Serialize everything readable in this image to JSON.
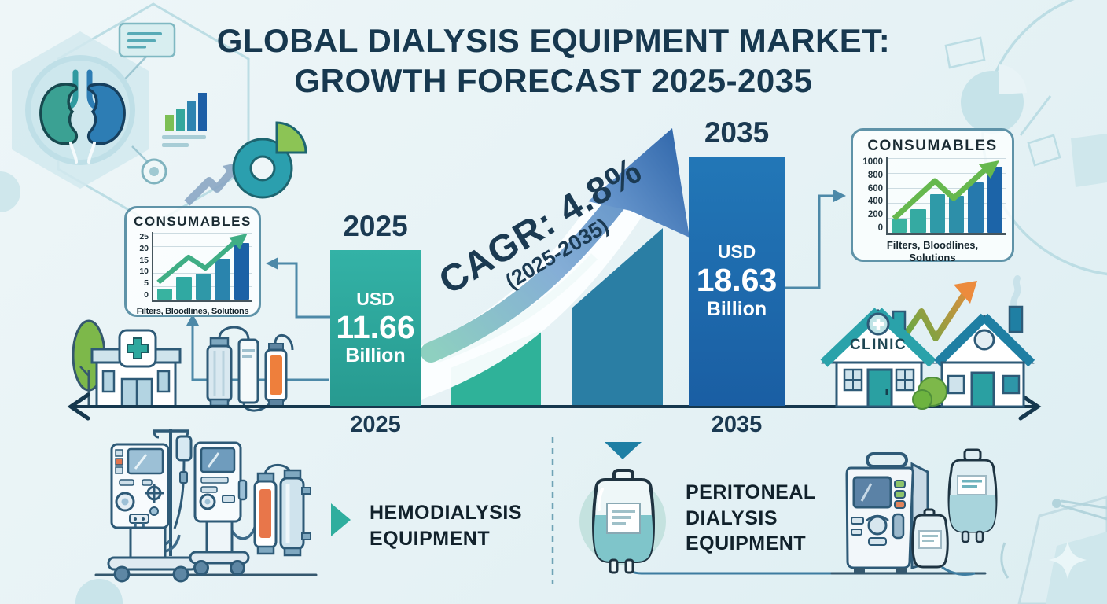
{
  "title": {
    "line1": "GLOBAL DIALYSIS EQUIPMENT MARKET:",
    "line2": "GROWTH FORECAST 2025-2035"
  },
  "chart_data": [
    {
      "type": "bar",
      "title": "Global dialysis equipment market growth forecast",
      "categories": [
        "2025",
        "2035"
      ],
      "values": [
        11.66,
        18.63
      ],
      "unit": "USD Billion",
      "annotations": [
        "CAGR: 4.8% (2025-2035)"
      ],
      "bar_colors": [
        "#2AA79C",
        "#1E6CAC"
      ],
      "legend_position": "none",
      "grid": false
    },
    {
      "type": "bar",
      "title": "CONSUMABLES (left card)",
      "values": [
        4,
        8.5,
        9.5,
        15,
        21
      ],
      "ylim": [
        0,
        25
      ],
      "yticks": [
        25,
        20,
        15,
        10,
        5,
        0
      ],
      "xlabel": "Filters, Bloodlines, Solutions",
      "bar_colors": [
        "#38b3a0",
        "#30a9a2",
        "#2f98a8",
        "#2a84ad",
        "#1c61a6"
      ],
      "trend_arrow": true,
      "grid": true
    },
    {
      "type": "bar",
      "title": "CONSUMABLES (right card)",
      "values": [
        190,
        310,
        510,
        490,
        670,
        870
      ],
      "ylim": [
        0,
        1000
      ],
      "yticks": [
        1000,
        800,
        600,
        400,
        200,
        0
      ],
      "xlabel": "Filters, Bloodlines, Solutions",
      "bar_colors": [
        "#3ab3a0",
        "#35aaa2",
        "#2f9aa8",
        "#2d8fa9",
        "#2679ad",
        "#1c64a8"
      ],
      "trend_arrow": true,
      "grid": true
    }
  ],
  "main_chart": {
    "cagr_label": "CAGR: 4.8%",
    "cagr_range": "(2025-2035)",
    "bars": [
      {
        "year": "2025",
        "currency": "USD",
        "value": "11.66",
        "unit": "Billion"
      },
      {
        "year": "2035",
        "currency": "USD",
        "value": "18.63",
        "unit": "Billion"
      }
    ]
  },
  "cards": {
    "left": {
      "title": "CONSUMABLES",
      "yticks": [
        "25",
        "20",
        "15",
        "10",
        "5",
        "0"
      ],
      "caption": "Filters, Bloodlines, Solutions"
    },
    "right": {
      "title": "CONSUMABLES",
      "yticks": [
        "1000",
        "800",
        "600",
        "400",
        "200",
        "0"
      ],
      "caption_line1": "Filters, Bloodlines,",
      "caption_line2": "Solutions"
    }
  },
  "segments": {
    "hemodialysis_line1": "HEMODIALYSIS",
    "hemodialysis_line2": "EQUIPMENT",
    "peritoneal_line1": "PERITONEAL",
    "peritoneal_line2": "DIALYSIS",
    "peritoneal_line3": "EQUIPMENT"
  },
  "scene": {
    "clinic_label": "CLINIC"
  },
  "colors": {
    "navy": "#17384f",
    "teal_bar": "#2AA79C",
    "blue_bar": "#1E6CAC",
    "green_trend": "#3fae85",
    "lime_trend": "#66b84e",
    "connector": "#4d89a8",
    "accent_orange": "#ec8b3d",
    "clinic_teal": "#2aa2aa"
  }
}
